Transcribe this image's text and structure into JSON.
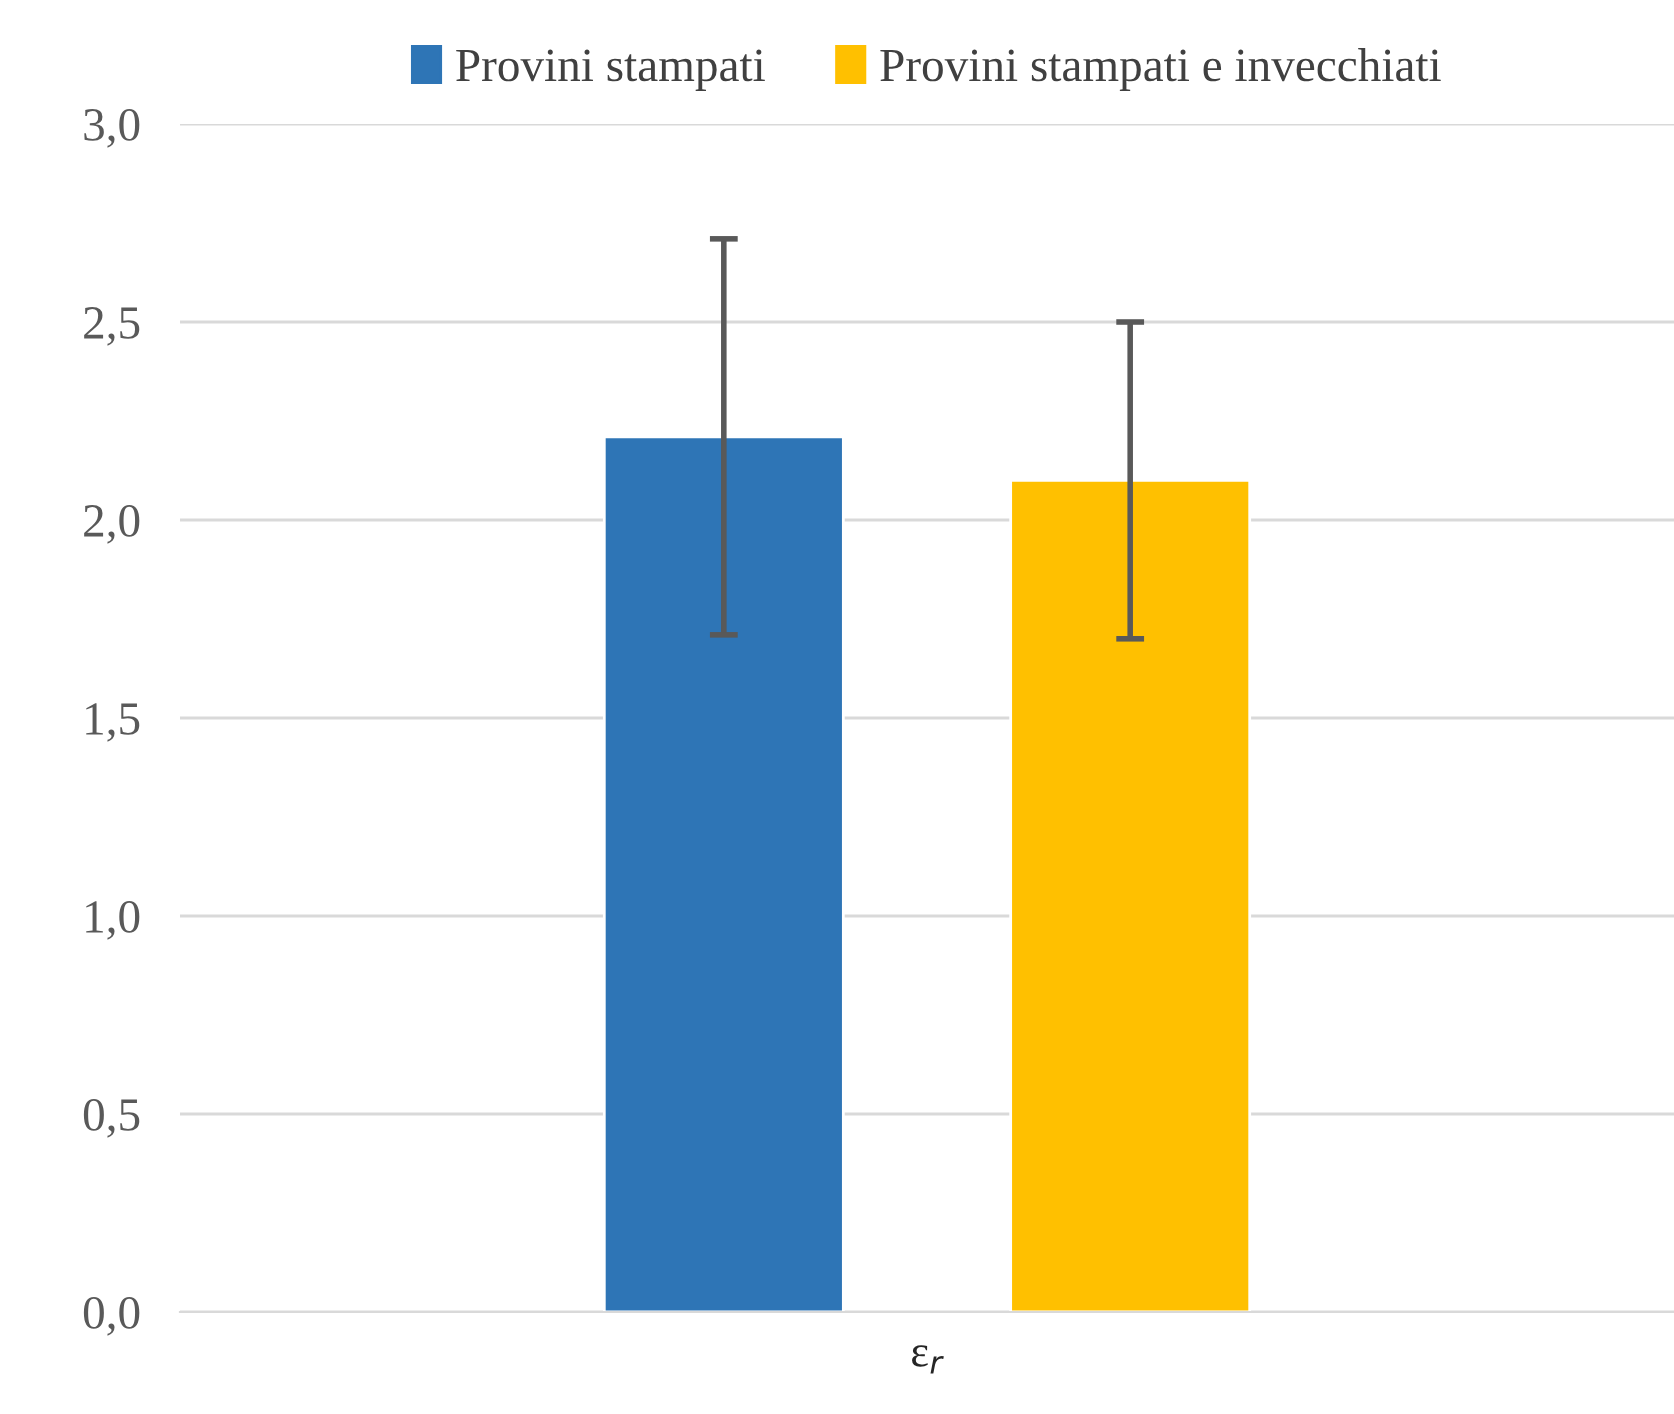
{
  "chart_data": {
    "type": "bar",
    "categories": [
      "ε$_{r}$"
    ],
    "series": [
      {
        "name": "Provini stampati",
        "color": "#2e75b6",
        "values": [
          2.21
        ],
        "errors": [
          0.5
        ]
      },
      {
        "name": "Provini stampati e invecchiati",
        "color": "#ffc000",
        "values": [
          2.1
        ],
        "errors": [
          0.4
        ]
      }
    ],
    "ylim": [
      0,
      3
    ],
    "yticks": [
      {
        "value": 0,
        "label": "0,0"
      },
      {
        "value": 0.5,
        "label": "0,5"
      },
      {
        "value": 1,
        "label": "1,0"
      },
      {
        "value": 1.5,
        "label": "1,5"
      },
      {
        "value": 2,
        "label": "2,0"
      },
      {
        "value": 2.5,
        "label": "2,5"
      },
      {
        "value": 3,
        "label": "3,0"
      }
    ],
    "grid": "y",
    "legend": "top"
  }
}
